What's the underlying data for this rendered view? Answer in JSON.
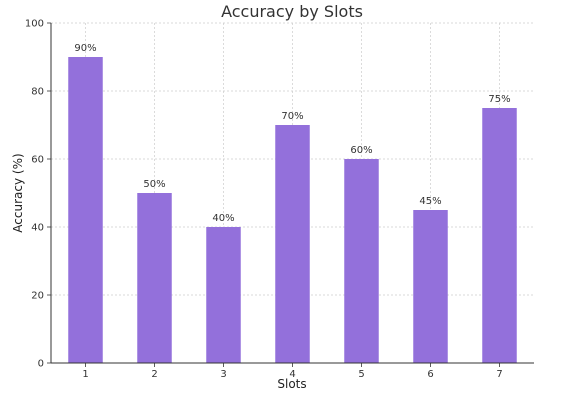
{
  "chart_data": {
    "type": "bar",
    "title": "Accuracy by Slots",
    "xlabel": "Slots",
    "ylabel": "Accuracy (%)",
    "categories": [
      "1",
      "2",
      "3",
      "4",
      "5",
      "6",
      "7"
    ],
    "values": [
      90,
      50,
      40,
      70,
      60,
      45,
      75
    ],
    "data_labels": [
      "90%",
      "50%",
      "40%",
      "70%",
      "60%",
      "45%",
      "75%"
    ],
    "yticks": [
      0,
      20,
      40,
      60,
      80,
      100
    ],
    "ytick_labels": [
      "0",
      "20",
      "40",
      "60",
      "80",
      "100"
    ],
    "ylim": [
      0,
      100
    ],
    "grid": true,
    "bar_color": "#9370DB",
    "grid_color": "#cccccc"
  }
}
